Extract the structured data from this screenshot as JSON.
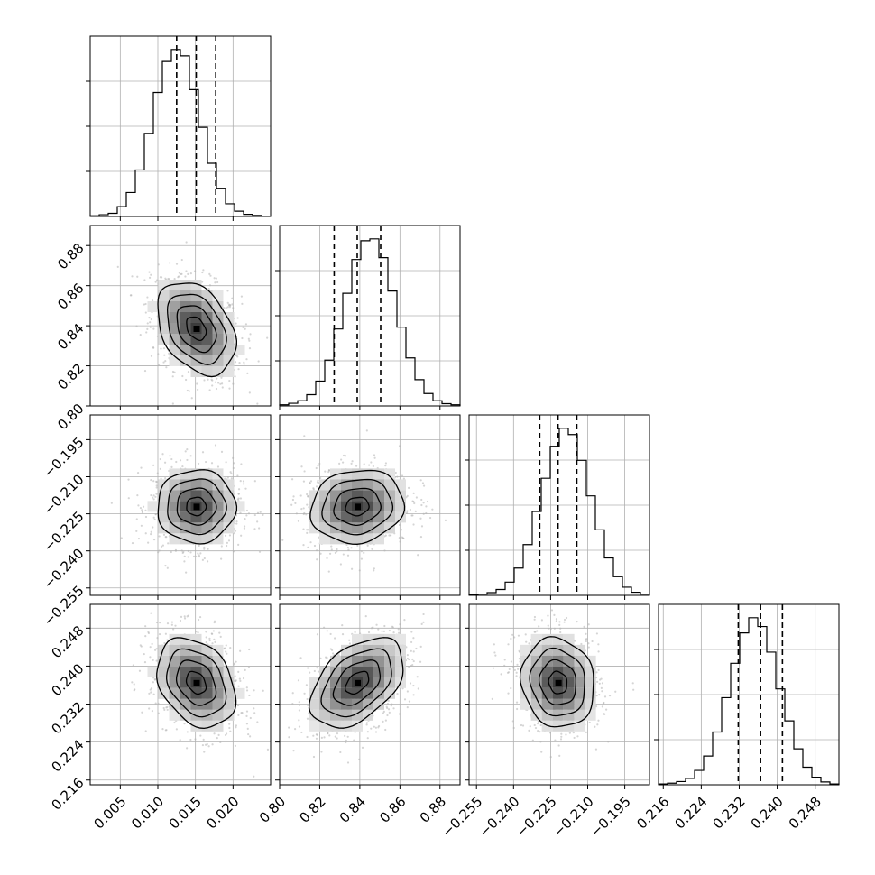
{
  "chart_data": {
    "type": "corner",
    "grid": true,
    "parameters": [
      {
        "range": [
          0.001,
          0.025
        ],
        "ticks": [
          0.005,
          0.01,
          0.015,
          0.02
        ],
        "tick_labels": [
          "0.005",
          "0.010",
          "0.015",
          "0.020"
        ],
        "quantiles": [
          0.0125,
          0.0151,
          0.0177
        ],
        "mean": 0.0151,
        "sd": 0.0026
      },
      {
        "range": [
          0.8,
          0.89
        ],
        "ticks": [
          0.8,
          0.82,
          0.84,
          0.86,
          0.88
        ],
        "tick_labels": [
          "0.80",
          "0.82",
          "0.84",
          "0.86",
          "0.88"
        ],
        "quantiles": [
          0.8272,
          0.8387,
          0.8504
        ],
        "mean": 0.8387,
        "sd": 0.0116
      },
      {
        "range": [
          -0.258,
          -0.185
        ],
        "ticks": [
          -0.255,
          -0.24,
          -0.225,
          -0.21,
          -0.195
        ],
        "tick_labels": [
          "−0.255",
          "−0.240",
          "−0.225",
          "−0.210",
          "−0.195"
        ],
        "quantiles": [
          -0.2294,
          -0.222,
          -0.2144
        ],
        "mean": -0.222,
        "sd": 0.0074
      },
      {
        "range": [
          0.215,
          0.253
        ],
        "ticks": [
          0.216,
          0.224,
          0.232,
          0.24,
          0.248
        ],
        "tick_labels": [
          "0.216",
          "0.224",
          "0.232",
          "0.240",
          "0.248"
        ],
        "quantiles": [
          0.2318,
          0.2365,
          0.2411
        ],
        "mean": 0.2365,
        "sd": 0.0047
      }
    ],
    "histograms": [
      {
        "param": 0,
        "bins": 20,
        "counts": [
          2,
          5,
          9,
          28,
          68,
          132,
          236,
          352,
          440,
          474,
          456,
          360,
          253,
          151,
          80,
          36,
          15,
          6,
          3,
          1
        ]
      },
      {
        "param": 1,
        "bins": 20,
        "counts": [
          3,
          7,
          14,
          30,
          66,
          122,
          205,
          300,
          390,
          440,
          445,
          395,
          306,
          210,
          128,
          70,
          33,
          14,
          6,
          3
        ]
      },
      {
        "param": 2,
        "bins": 20,
        "counts": [
          1,
          3,
          7,
          15,
          34,
          70,
          130,
          215,
          300,
          382,
          428,
          412,
          346,
          255,
          168,
          96,
          48,
          21,
          8,
          3
        ]
      },
      {
        "param": 3,
        "bins": 20,
        "counts": [
          2,
          4,
          8,
          16,
          36,
          72,
          132,
          218,
          304,
          380,
          418,
          396,
          332,
          240,
          160,
          90,
          44,
          19,
          7,
          2
        ]
      }
    ],
    "correlations": {
      "1-0": -0.35,
      "2-0": 0.0,
      "2-1": 0.1,
      "3-0": -0.3,
      "3-1": 0.45,
      "3-2": -0.1
    }
  }
}
